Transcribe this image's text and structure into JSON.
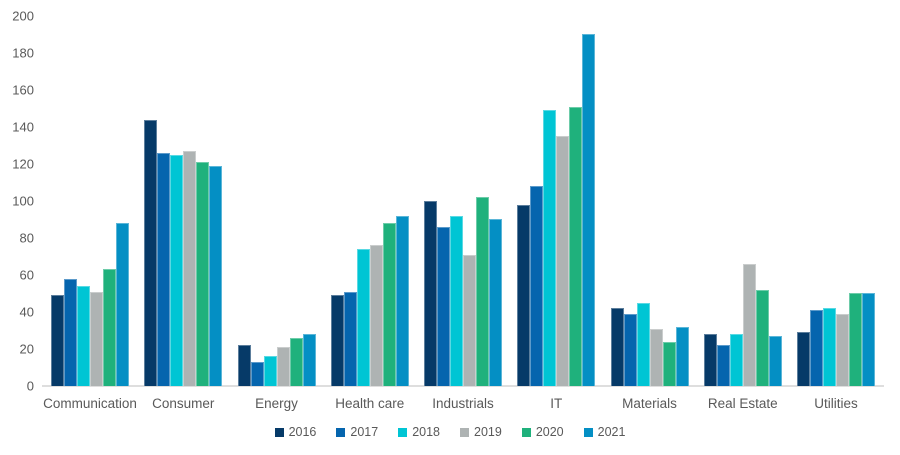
{
  "chart_data": {
    "type": "bar",
    "title": "",
    "xlabel": "",
    "ylabel": "",
    "ylim": [
      0,
      200
    ],
    "ytick_interval": 20,
    "grid": false,
    "legend_position": "bottom",
    "categories": [
      "Communication",
      "Consumer",
      "Energy",
      "Health care",
      "Industrials",
      "IT",
      "Materials",
      "Real Estate",
      "Utilities"
    ],
    "series": [
      {
        "name": "2016",
        "color": "#063a68",
        "values": [
          49,
          144,
          22,
          49,
          100,
          98,
          42,
          28,
          29
        ]
      },
      {
        "name": "2017",
        "color": "#0565ae",
        "values": [
          58,
          126,
          13,
          51,
          86,
          108,
          39,
          22,
          41
        ]
      },
      {
        "name": "2018",
        "color": "#00c5d4",
        "values": [
          54,
          125,
          16,
          74,
          92,
          149,
          45,
          28,
          42
        ]
      },
      {
        "name": "2019",
        "color": "#aeb3b3",
        "values": [
          51,
          127,
          21,
          76,
          71,
          135,
          31,
          66,
          39
        ]
      },
      {
        "name": "2020",
        "color": "#1fb17c",
        "values": [
          63,
          121,
          26,
          88,
          102,
          151,
          24,
          52,
          50
        ]
      },
      {
        "name": "2021",
        "color": "#048fc4",
        "values": [
          88,
          119,
          28,
          92,
          90,
          190,
          32,
          27,
          50
        ]
      }
    ]
  },
  "colors": {
    "axis_line": "#dedede",
    "tick_text": "#595959",
    "category_text": "#595959",
    "legend_text": "#595959",
    "background": "#ffffff"
  }
}
